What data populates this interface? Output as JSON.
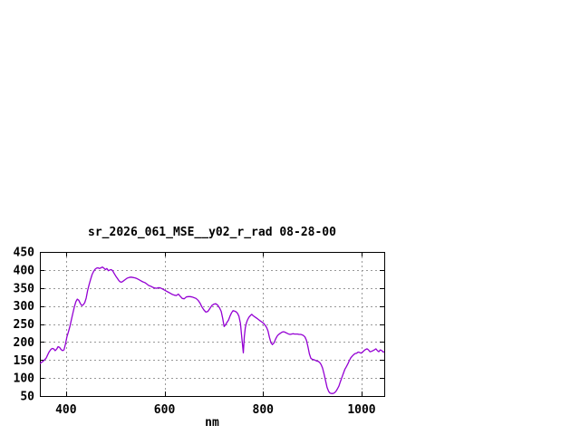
{
  "page": {
    "background_color": "#ffffff",
    "note_blank_regions": "top half and right side of canvas are empty white"
  },
  "chart_data": {
    "type": "line",
    "title": "sr_2026_061_MSE__y02_r_rad 08-28-00",
    "xlabel": "nm",
    "ylabel": "",
    "xlim": [
      347,
      1046
    ],
    "ylim": [
      50,
      450
    ],
    "xticks": [
      400,
      600,
      800,
      1000
    ],
    "yticks": [
      50,
      100,
      150,
      200,
      250,
      300,
      350,
      400,
      450
    ],
    "grid": true,
    "grid_style": "dashed",
    "legend": "none",
    "line_color": "#9400D3",
    "grid_color": "#999999",
    "axis_color": "#000000",
    "series": [
      {
        "points": [
          [
            347,
            140
          ],
          [
            350,
            143
          ],
          [
            353,
            146
          ],
          [
            356,
            150
          ],
          [
            360,
            156
          ],
          [
            363,
            165
          ],
          [
            366,
            173
          ],
          [
            369,
            179
          ],
          [
            372,
            182
          ],
          [
            375,
            181
          ],
          [
            378,
            176
          ],
          [
            381,
            180
          ],
          [
            384,
            187
          ],
          [
            387,
            185
          ],
          [
            390,
            179
          ],
          [
            393,
            176
          ],
          [
            396,
            178
          ],
          [
            399,
            195
          ],
          [
            402,
            215
          ],
          [
            405,
            228
          ],
          [
            408,
            244
          ],
          [
            411,
            262
          ],
          [
            414,
            280
          ],
          [
            417,
            298
          ],
          [
            420,
            312
          ],
          [
            423,
            319
          ],
          [
            426,
            316
          ],
          [
            429,
            307
          ],
          [
            432,
            301
          ],
          [
            435,
            303
          ],
          [
            438,
            309
          ],
          [
            441,
            322
          ],
          [
            444,
            343
          ],
          [
            447,
            360
          ],
          [
            450,
            374
          ],
          [
            453,
            387
          ],
          [
            456,
            396
          ],
          [
            459,
            402
          ],
          [
            462,
            405
          ],
          [
            465,
            406
          ],
          [
            468,
            404
          ],
          [
            471,
            406
          ],
          [
            474,
            408
          ],
          [
            477,
            405
          ],
          [
            480,
            401
          ],
          [
            483,
            404
          ],
          [
            486,
            398
          ],
          [
            489,
            400
          ],
          [
            492,
            401
          ],
          [
            495,
            397
          ],
          [
            498,
            390
          ],
          [
            501,
            383
          ],
          [
            504,
            377
          ],
          [
            507,
            371
          ],
          [
            510,
            367
          ],
          [
            513,
            366
          ],
          [
            516,
            369
          ],
          [
            520,
            373
          ],
          [
            524,
            377
          ],
          [
            528,
            379
          ],
          [
            532,
            380
          ],
          [
            536,
            379
          ],
          [
            540,
            378
          ],
          [
            544,
            376
          ],
          [
            548,
            373
          ],
          [
            552,
            370
          ],
          [
            556,
            367
          ],
          [
            560,
            365
          ],
          [
            564,
            361
          ],
          [
            568,
            357
          ],
          [
            572,
            355
          ],
          [
            576,
            352
          ],
          [
            580,
            350
          ],
          [
            584,
            349
          ],
          [
            588,
            351
          ],
          [
            592,
            350
          ],
          [
            596,
            347
          ],
          [
            600,
            344
          ],
          [
            604,
            341
          ],
          [
            608,
            338
          ],
          [
            612,
            335
          ],
          [
            616,
            332
          ],
          [
            620,
            330
          ],
          [
            624,
            329
          ],
          [
            628,
            333
          ],
          [
            632,
            327
          ],
          [
            636,
            321
          ],
          [
            640,
            320
          ],
          [
            644,
            325
          ],
          [
            648,
            326
          ],
          [
            652,
            326
          ],
          [
            656,
            325
          ],
          [
            660,
            323
          ],
          [
            664,
            321
          ],
          [
            668,
            316
          ],
          [
            672,
            308
          ],
          [
            676,
            297
          ],
          [
            680,
            289
          ],
          [
            684,
            283
          ],
          [
            688,
            285
          ],
          [
            692,
            293
          ],
          [
            696,
            301
          ],
          [
            700,
            305
          ],
          [
            704,
            306
          ],
          [
            708,
            302
          ],
          [
            712,
            294
          ],
          [
            715,
            285
          ],
          [
            718,
            266
          ],
          [
            721,
            243
          ],
          [
            724,
            248
          ],
          [
            727,
            255
          ],
          [
            730,
            261
          ],
          [
            733,
            272
          ],
          [
            736,
            281
          ],
          [
            739,
            287
          ],
          [
            742,
            286
          ],
          [
            745,
            284
          ],
          [
            748,
            280
          ],
          [
            751,
            272
          ],
          [
            754,
            252
          ],
          [
            757,
            210
          ],
          [
            760,
            170
          ],
          [
            762,
            215
          ],
          [
            764,
            240
          ],
          [
            766,
            252
          ],
          [
            768,
            260
          ],
          [
            771,
            268
          ],
          [
            774,
            273
          ],
          [
            777,
            277
          ],
          [
            780,
            273
          ],
          [
            783,
            270
          ],
          [
            786,
            267
          ],
          [
            789,
            264
          ],
          [
            792,
            261
          ],
          [
            795,
            258
          ],
          [
            798,
            255
          ],
          [
            801,
            252
          ],
          [
            804,
            247
          ],
          [
            807,
            241
          ],
          [
            810,
            231
          ],
          [
            813,
            213
          ],
          [
            816,
            198
          ],
          [
            819,
            193
          ],
          [
            822,
            197
          ],
          [
            825,
            207
          ],
          [
            828,
            215
          ],
          [
            831,
            220
          ],
          [
            834,
            223
          ],
          [
            837,
            226
          ],
          [
            840,
            228
          ],
          [
            843,
            228
          ],
          [
            846,
            226
          ],
          [
            849,
            224
          ],
          [
            852,
            222
          ],
          [
            855,
            221
          ],
          [
            858,
            222
          ],
          [
            861,
            223
          ],
          [
            864,
            222
          ],
          [
            867,
            222
          ],
          [
            870,
            222
          ],
          [
            873,
            221
          ],
          [
            876,
            221
          ],
          [
            879,
            220
          ],
          [
            882,
            218
          ],
          [
            885,
            214
          ],
          [
            888,
            205
          ],
          [
            891,
            188
          ],
          [
            894,
            167
          ],
          [
            897,
            155
          ],
          [
            900,
            152
          ],
          [
            903,
            151
          ],
          [
            906,
            149
          ],
          [
            909,
            147
          ],
          [
            912,
            146
          ],
          [
            915,
            143
          ],
          [
            918,
            137
          ],
          [
            921,
            127
          ],
          [
            924,
            110
          ],
          [
            927,
            92
          ],
          [
            930,
            74
          ],
          [
            933,
            63
          ],
          [
            936,
            58
          ],
          [
            939,
            57
          ],
          [
            942,
            57
          ],
          [
            945,
            59
          ],
          [
            948,
            63
          ],
          [
            951,
            70
          ],
          [
            954,
            78
          ],
          [
            957,
            90
          ],
          [
            960,
            101
          ],
          [
            963,
            113
          ],
          [
            966,
            124
          ],
          [
            969,
            131
          ],
          [
            972,
            139
          ],
          [
            975,
            148
          ],
          [
            978,
            156
          ],
          [
            981,
            161
          ],
          [
            984,
            165
          ],
          [
            987,
            168
          ],
          [
            990,
            169
          ],
          [
            993,
            172
          ],
          [
            996,
            171
          ],
          [
            999,
            169
          ],
          [
            1002,
            172
          ],
          [
            1005,
            176
          ],
          [
            1008,
            179
          ],
          [
            1011,
            181
          ],
          [
            1014,
            178
          ],
          [
            1017,
            173
          ],
          [
            1020,
            174
          ],
          [
            1023,
            176
          ],
          [
            1026,
            178
          ],
          [
            1029,
            181
          ],
          [
            1032,
            176
          ],
          [
            1035,
            173
          ],
          [
            1038,
            178
          ],
          [
            1041,
            176
          ],
          [
            1044,
            172
          ],
          [
            1046,
            173
          ]
        ]
      }
    ]
  }
}
